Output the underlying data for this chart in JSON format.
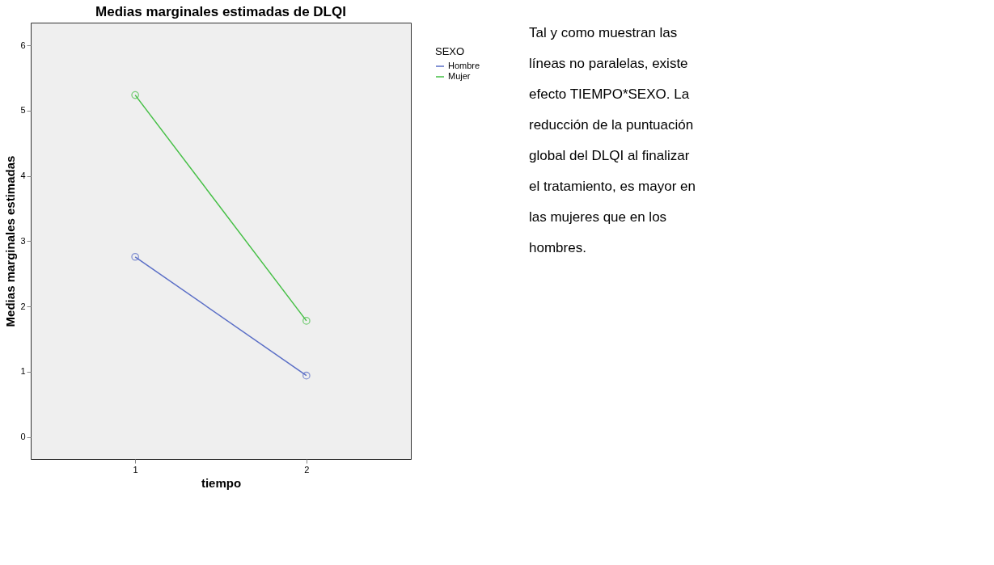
{
  "chart_data": {
    "type": "line",
    "title": "Medias marginales estimadas de DLQI",
    "xlabel": "tiempo",
    "ylabel": "Medias marginales estimadas",
    "legend_title": "SEXO",
    "categories": [
      "1",
      "2"
    ],
    "series": [
      {
        "name": "Hombre",
        "color": "#5a6ec6",
        "values": [
          2.76,
          0.94
        ]
      },
      {
        "name": "Mujer",
        "color": "#45bf45",
        "values": [
          5.24,
          1.78
        ]
      }
    ],
    "ylim": [
      -0.34,
      6.35
    ],
    "yticks": [
      0,
      1,
      2,
      3,
      4,
      5,
      6
    ],
    "grid": false,
    "legend": "top right",
    "marker": "circle",
    "line_style": "solid",
    "annotations": [
      "Tal y como muestran las líneas no paralelas, existe efecto TIEMPO*SEXO. La reducción de la puntuación global del DLQI al finalizar el tratamiento, es mayor en las mujeres que en los hombres."
    ]
  }
}
